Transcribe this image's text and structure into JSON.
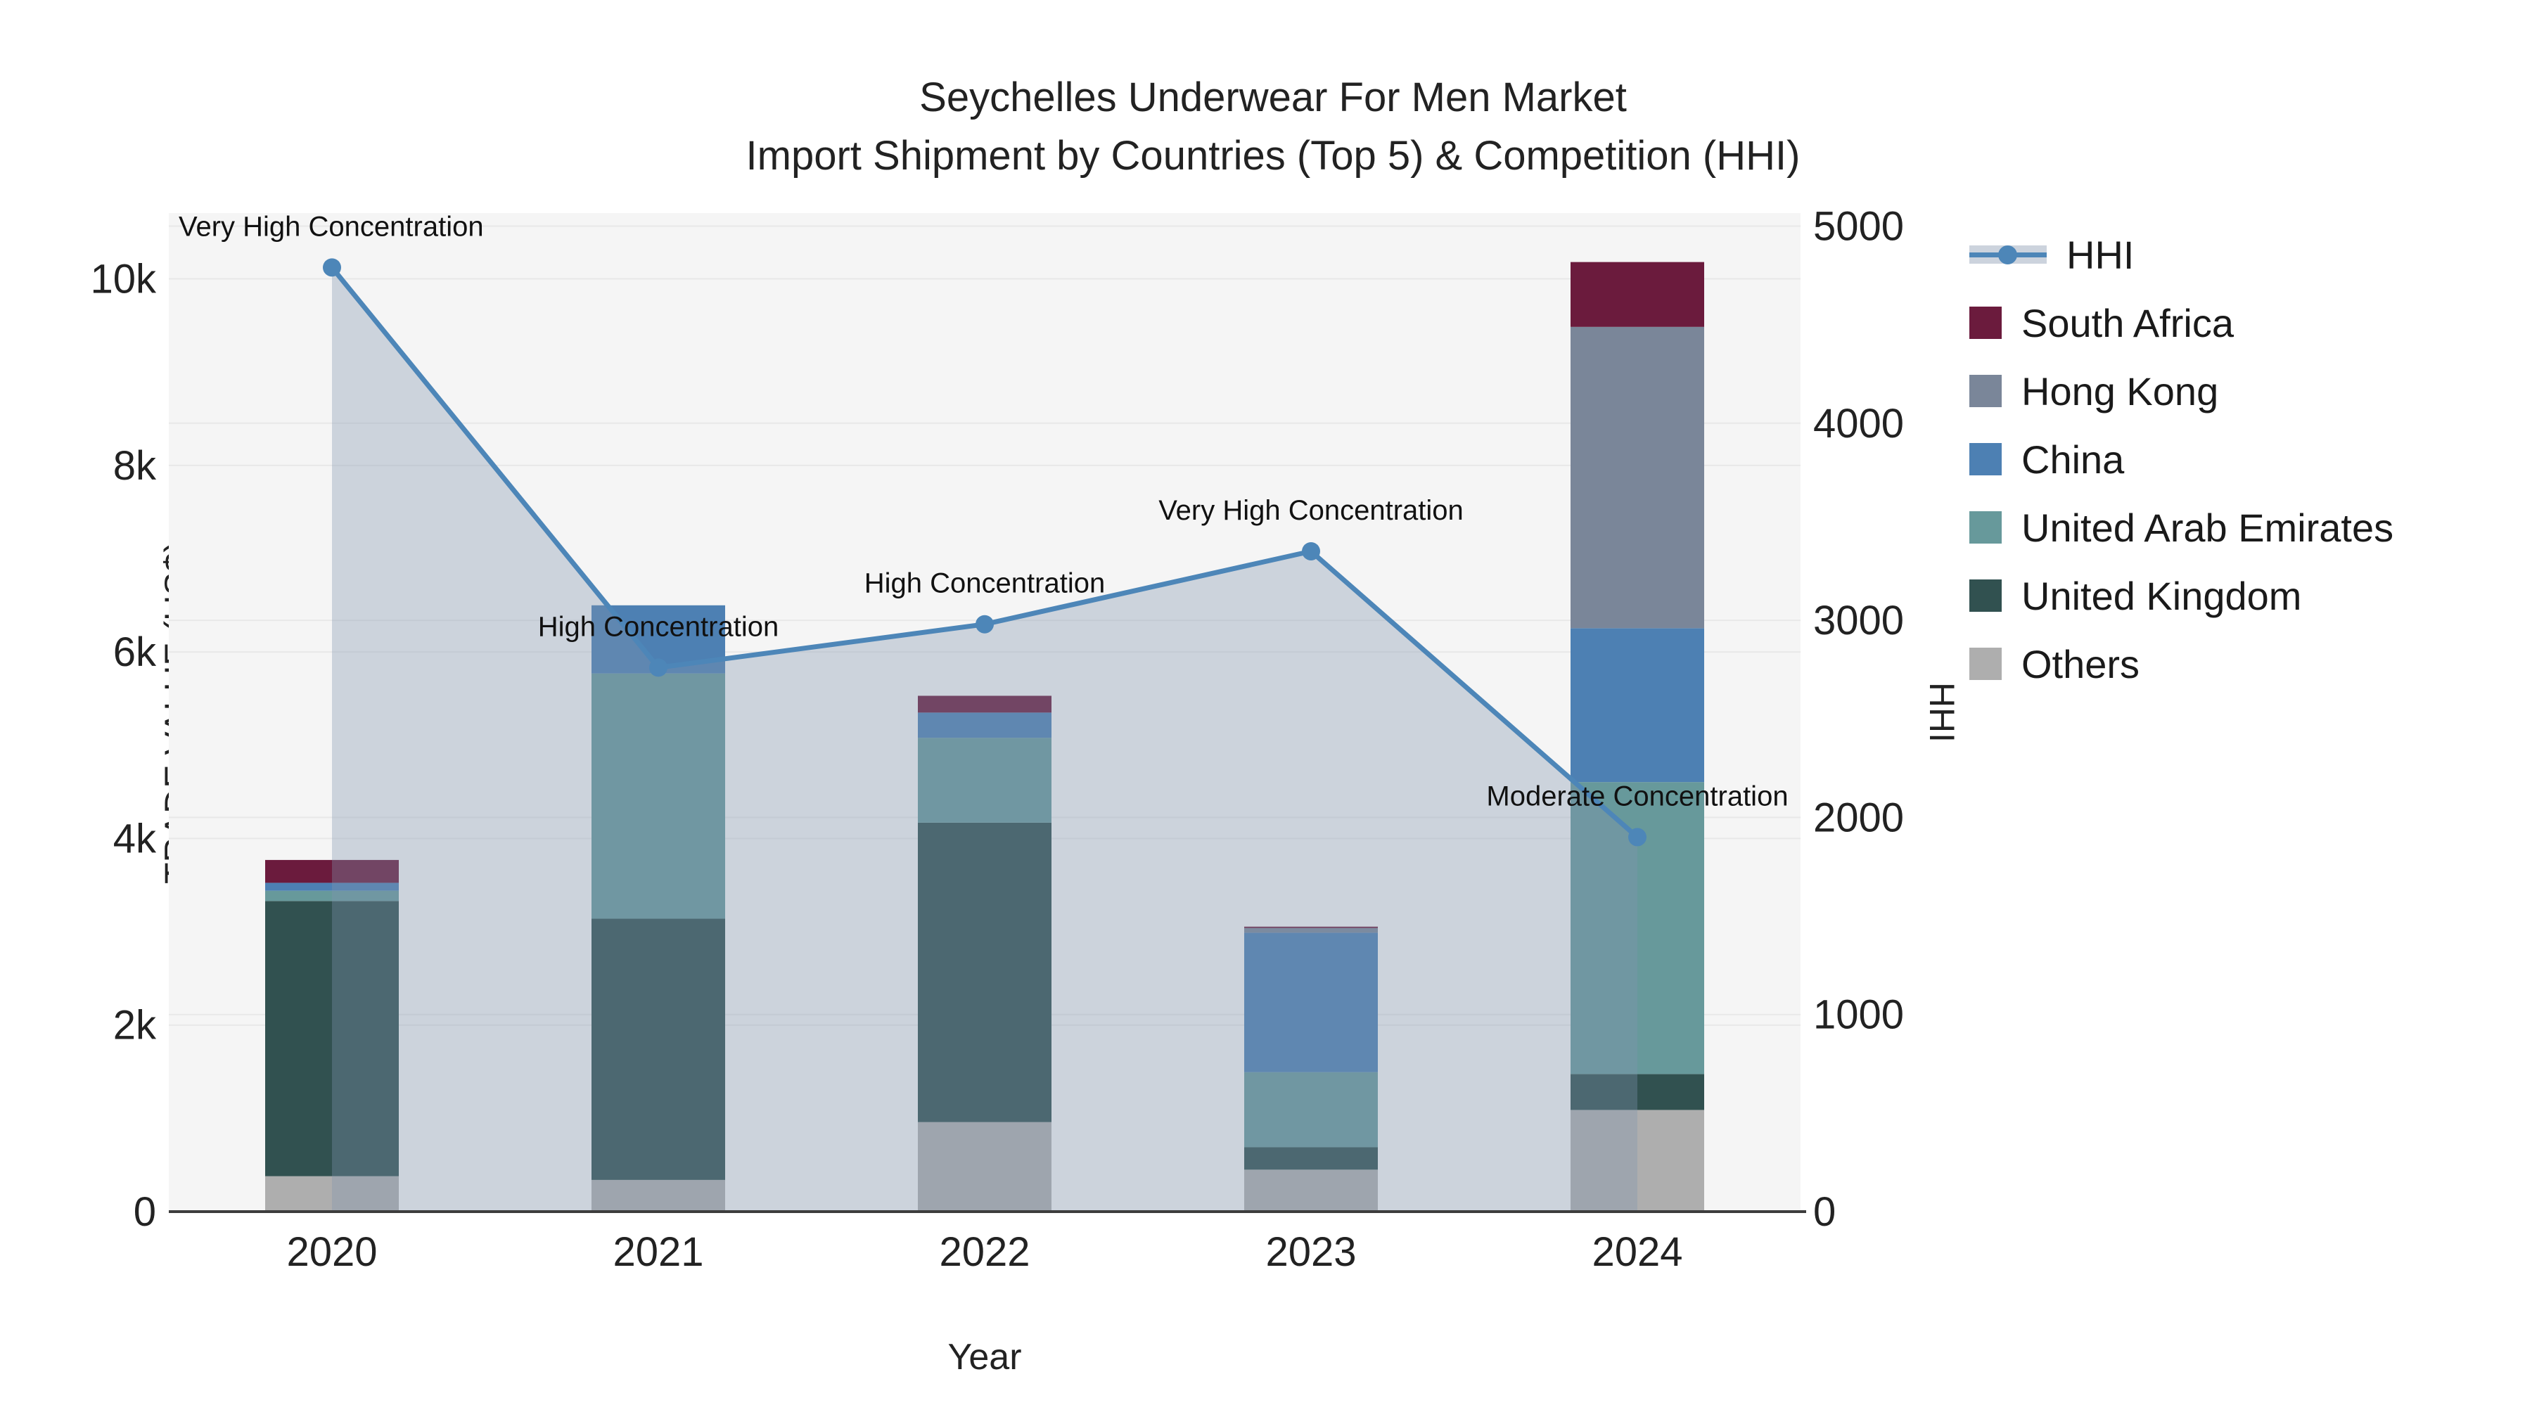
{
  "title": {
    "line1": "Seychelles Underwear For Men Market",
    "line2": "Import Shipment by Countries (Top 5) & Competition (HHI)"
  },
  "axes": {
    "y_left": {
      "title": "TRADE VALUE (US$)",
      "tick_labels": [
        "0",
        "2k",
        "4k",
        "6k",
        "8k",
        "10k"
      ],
      "tick_values": [
        0,
        2000,
        4000,
        6000,
        8000,
        10000
      ],
      "max": 10705
    },
    "y_right": {
      "title": "HHI",
      "tick_labels": [
        "0",
        "1000",
        "2000",
        "3000",
        "4000",
        "5000"
      ],
      "tick_values": [
        0,
        1000,
        2000,
        3000,
        4000,
        5000
      ],
      "max": 5066
    },
    "x": {
      "title": "Year",
      "categories": [
        "2020",
        "2021",
        "2022",
        "2023",
        "2024"
      ]
    }
  },
  "legend": {
    "items": [
      {
        "label": "HHI",
        "type": "line",
        "color": "#4d86b8"
      },
      {
        "label": "South Africa",
        "type": "square",
        "color": "#6b1b3d"
      },
      {
        "label": "Hong Kong",
        "type": "square",
        "color": "#7a8699"
      },
      {
        "label": "China",
        "type": "square",
        "color": "#4d80b3"
      },
      {
        "label": "United Arab Emirates",
        "type": "square",
        "color": "#67999b"
      },
      {
        "label": "United Kingdom",
        "type": "square",
        "color": "#315150"
      },
      {
        "label": "Others",
        "type": "square",
        "color": "#aeaeae"
      }
    ]
  },
  "chart_data": {
    "type": "bar",
    "subtype": "stacked-bars-with-line",
    "title": "Seychelles Underwear For Men Market — Import Shipment by Countries (Top 5) & Competition (HHI)",
    "xlabel": "Year",
    "ylabel_left": "TRADE VALUE (US$)",
    "ylabel_right": "HHI",
    "ylim_left": [
      0,
      10705
    ],
    "ylim_right": [
      0,
      5066
    ],
    "grid": true,
    "legend_position": "right",
    "categories": [
      "2020",
      "2021",
      "2022",
      "2023",
      "2024"
    ],
    "series": [
      {
        "name": "Others",
        "color": "#aeaeae",
        "values": [
          380,
          340,
          960,
          450,
          1090
        ]
      },
      {
        "name": "United Kingdom",
        "color": "#315150",
        "values": [
          2950,
          2800,
          3210,
          240,
          385
        ]
      },
      {
        "name": "United Arab Emirates",
        "color": "#67999b",
        "values": [
          110,
          2630,
          910,
          805,
          3130
        ]
      },
      {
        "name": "China",
        "color": "#4d80b3",
        "values": [
          85,
          730,
          270,
          1495,
          1650
        ]
      },
      {
        "name": "Hong Kong",
        "color": "#7a8699",
        "values": [
          0,
          0,
          0,
          50,
          3230
        ]
      },
      {
        "name": "South Africa",
        "color": "#6b1b3d",
        "values": [
          245,
          0,
          180,
          15,
          695
        ]
      }
    ],
    "bar_totals": [
      3770,
      6500,
      5530,
      3055,
      10180
    ],
    "line_series": {
      "name": "HHI",
      "axis": "right",
      "color": "#4d86b8",
      "area_color": "rgba(130,148,175,0.35)",
      "values": [
        4790,
        2760,
        2980,
        3350,
        1900
      ]
    },
    "annotations": [
      {
        "category": "2020",
        "text": "Very High Concentration"
      },
      {
        "category": "2021",
        "text": "High Concentration"
      },
      {
        "category": "2022",
        "text": "High Concentration"
      },
      {
        "category": "2023",
        "text": "Very High Concentration"
      },
      {
        "category": "2024",
        "text": "Moderate Concentration"
      }
    ],
    "style": {
      "plot_bg": "#f5f5f5",
      "grid_color": "#e8e8e8",
      "axis_line_color": "#3d3d3d",
      "annotation_color": "#111111",
      "tick_color": "#222222"
    }
  }
}
